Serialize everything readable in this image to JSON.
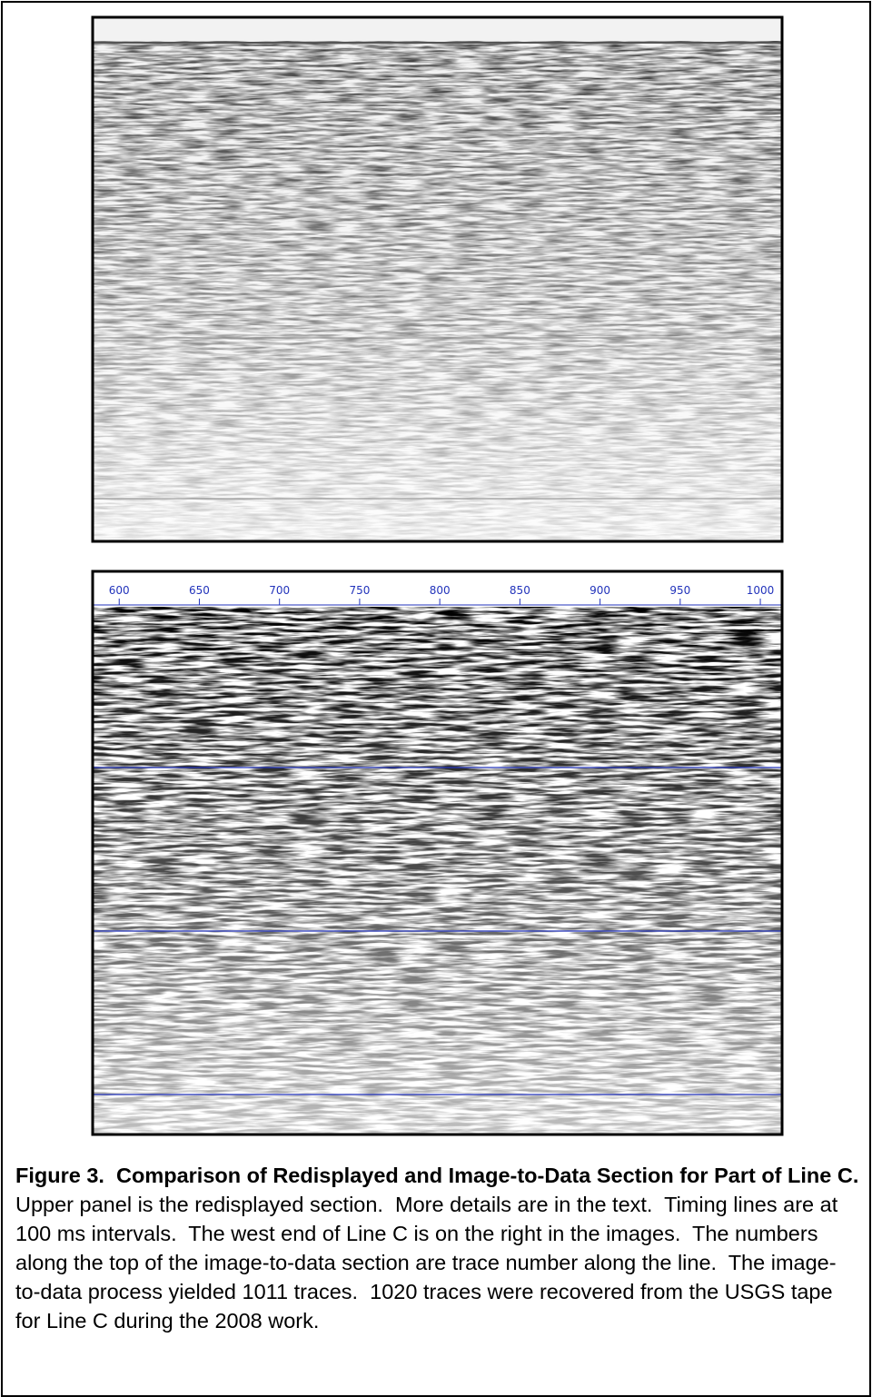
{
  "lower_panel": {
    "xticks": [
      600,
      650,
      700,
      750,
      800,
      850,
      900,
      950,
      1000
    ],
    "xlim": [
      584,
      1013
    ]
  },
  "caption": {
    "bold": "Figure 3.  Comparison of Redisplayed and Image-to-Data Section for Part of Line C.",
    "text": "  Upper panel is the redisplayed section.  More details are in the text.  Timing lines are at 100 ms intervals.  The west end of Line C is on the right in the images.  The numbers along the top of the image-to-data section are trace number along the line.  The image-to-data process yielded 1011 traces.  1020 traces were recovered from the USGS tape for Line C during the 2008 work."
  }
}
